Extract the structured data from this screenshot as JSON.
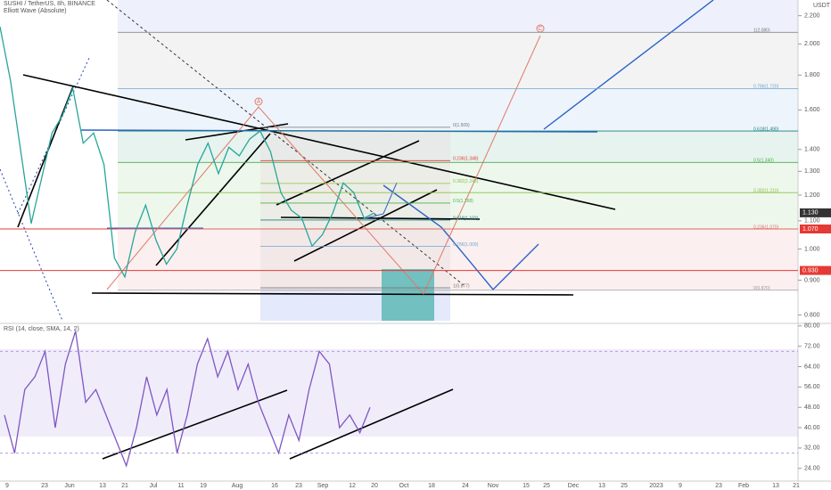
{
  "header": {
    "symbol": "SUSHI / TetherUS, 8h, BINANCE",
    "indicator": "Elliott Wave (Absolute)",
    "currency": "USDT"
  },
  "price_axis": {
    "ylim": [
      0.78,
      2.32
    ],
    "ticks": [
      {
        "value": 2.2,
        "label": "2.200"
      },
      {
        "value": 2.0,
        "label": "2.000"
      },
      {
        "value": 1.8,
        "label": "1.800"
      },
      {
        "value": 1.6,
        "label": "1.600"
      },
      {
        "value": 1.4,
        "label": "1.400"
      },
      {
        "value": 1.3,
        "label": "1.300"
      },
      {
        "value": 1.2,
        "label": "1.200"
      },
      {
        "value": 1.1,
        "label": "1.100"
      },
      {
        "value": 1.0,
        "label": "1.000"
      },
      {
        "value": 0.9,
        "label": "0.900"
      },
      {
        "value": 0.8,
        "label": "0.800"
      }
    ],
    "tags": [
      {
        "value": 1.13,
        "label": "1.130"
      },
      {
        "value": 1.07,
        "label": "1.070"
      },
      {
        "value": 0.93,
        "label": "0.930"
      }
    ]
  },
  "fib_outer": [
    {
      "value": 2.08,
      "label": "1(2.080)"
    },
    {
      "value": 1.72,
      "label": "0.786(1.720)"
    },
    {
      "value": 1.49,
      "label": "0.618(1.490)"
    },
    {
      "value": 1.34,
      "label": "0.5(1.340)"
    },
    {
      "value": 1.21,
      "label": "0.382(1.210)"
    },
    {
      "value": 1.07,
      "label": "0.236(1.070)"
    },
    {
      "value": 0.87,
      "label": "0(0.870)"
    }
  ],
  "fib_inner": [
    {
      "value": 1.509,
      "label": "0(1.509)"
    },
    {
      "value": 1.348,
      "label": "0.236(1.348)"
    },
    {
      "value": 1.248,
      "label": "0.382(1.248)"
    },
    {
      "value": 1.168,
      "label": "0.5(1.168)"
    },
    {
      "value": 1.103,
      "label": "0.618(1.103)"
    },
    {
      "value": 1.009,
      "label": "0.786(1.009)"
    },
    {
      "value": 0.877,
      "label": "1(0.877)"
    }
  ],
  "waves": [
    "A",
    "C"
  ],
  "price": {
    "values": [
      2.12,
      1.77,
      1.39,
      1.09,
      1.27,
      1.48,
      1.57,
      1.72,
      1.43,
      1.48,
      1.33,
      0.97,
      0.91,
      1.06,
      1.16,
      1.03,
      0.95,
      1.0,
      1.16,
      1.33,
      1.43,
      1.29,
      1.41,
      1.37,
      1.45,
      1.49,
      1.39,
      1.21,
      1.14,
      1.11,
      1.01,
      1.05,
      1.13,
      1.25,
      1.21,
      1.11,
      1.13
    ]
  },
  "rsi": {
    "title": "RSI (14, close, SMA, 14, 2)",
    "ylim": [
      19,
      81
    ],
    "band": [
      30,
      70
    ],
    "ticks": [
      {
        "value": 80,
        "label": "80.00"
      },
      {
        "value": 72,
        "label": "72.00"
      },
      {
        "value": 64,
        "label": "64.00"
      },
      {
        "value": 56,
        "label": "56.00"
      },
      {
        "value": 48,
        "label": "48.00"
      },
      {
        "value": 40,
        "label": "40.00"
      },
      {
        "value": 32,
        "label": "32.00"
      },
      {
        "value": 24,
        "label": "24.00"
      }
    ],
    "values": [
      45,
      30,
      55,
      60,
      70,
      40,
      65,
      78,
      50,
      55,
      45,
      35,
      25,
      40,
      60,
      45,
      55,
      30,
      45,
      65,
      75,
      60,
      70,
      55,
      65,
      50,
      40,
      30,
      45,
      35,
      55,
      70,
      65,
      40,
      45,
      38,
      48
    ]
  },
  "time_axis": {
    "labels": [
      "9",
      "23",
      "Jun",
      "13",
      "21",
      "Jul",
      "11",
      "19",
      "Aug",
      "16",
      "23",
      "Sep",
      "12",
      "20",
      "Oct",
      "18",
      "24",
      "Nov",
      "15",
      "25",
      "Dec",
      "13",
      "25",
      "2023",
      "9",
      "23",
      "Feb",
      "13",
      "21"
    ]
  }
}
